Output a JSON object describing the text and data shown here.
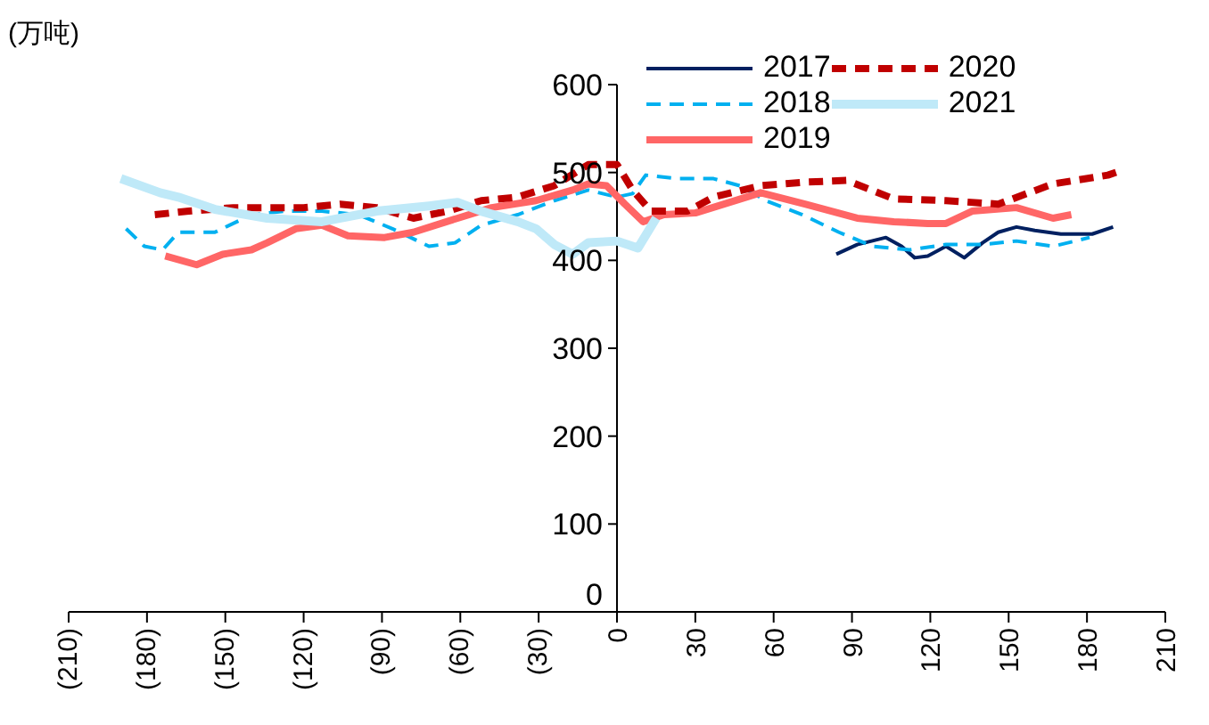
{
  "chart_data": {
    "type": "line",
    "title": "(万吨)",
    "xlim": [
      -210,
      210
    ],
    "ylim": [
      0,
      600
    ],
    "xticks": [
      {
        "value": -210,
        "label": "(210)"
      },
      {
        "value": -180,
        "label": "(180)"
      },
      {
        "value": -150,
        "label": "(150)"
      },
      {
        "value": -120,
        "label": "(120)"
      },
      {
        "value": -90,
        "label": "(90)"
      },
      {
        "value": -60,
        "label": "(60)"
      },
      {
        "value": -30,
        "label": "(30)"
      },
      0,
      30,
      60,
      90,
      120,
      150,
      180,
      210
    ],
    "yticks": [
      0,
      100,
      200,
      300,
      400,
      500,
      600
    ],
    "grid": false,
    "legend": "top right",
    "series": [
      {
        "name": "2017",
        "color": "#002060",
        "line_style": "solid",
        "x": [
          84,
          92,
          103,
          109,
          114,
          119,
          126,
          133,
          140,
          146,
          153,
          160,
          170,
          182,
          190
        ],
        "values": [
          407,
          418,
          426,
          416,
          403,
          405,
          416,
          403,
          420,
          432,
          438,
          434,
          430,
          430,
          438
        ]
      },
      {
        "name": "2018",
        "color": "#00B0F0",
        "line_style": "dashed",
        "x": [
          -188,
          -181,
          -174,
          -168,
          -154,
          -140,
          -127,
          -113,
          -99,
          -86,
          -72,
          -62,
          -52,
          -38,
          -24,
          -11,
          0,
          6,
          11,
          23,
          37,
          47,
          57,
          71,
          85,
          98,
          112,
          126,
          140,
          153,
          167,
          181
        ],
        "values": [
          436,
          416,
          412,
          432,
          432,
          452,
          456,
          456,
          452,
          436,
          416,
          420,
          440,
          452,
          468,
          480,
          472,
          476,
          497,
          493,
          493,
          485,
          468,
          452,
          432,
          416,
          412,
          418,
          418,
          422,
          416,
          426
        ]
      },
      {
        "name": "2019",
        "color": "#FF6666",
        "line_style": "solid",
        "x": [
          -173,
          -161,
          -151,
          -140,
          -134,
          -123,
          -113,
          -103,
          -89,
          -78,
          -61,
          -48,
          -31,
          -17,
          -11,
          -4,
          3,
          10,
          18,
          30,
          41,
          55,
          72,
          92,
          106,
          119,
          126,
          136,
          153,
          167,
          174
        ],
        "values": [
          405,
          395,
          407,
          412,
          420,
          436,
          440,
          428,
          426,
          432,
          448,
          460,
          468,
          480,
          487,
          485,
          464,
          444,
          452,
          454,
          464,
          477,
          464,
          448,
          444,
          442,
          442,
          456,
          460,
          448,
          452
        ]
      },
      {
        "name": "2020",
        "color": "#C00000",
        "line_style": "dashed",
        "x": [
          -177,
          -164,
          -147,
          -134,
          -120,
          -106,
          -92,
          -78,
          -65,
          -52,
          -38,
          -24,
          -11,
          0,
          6,
          13,
          27,
          37,
          55,
          72,
          88,
          106,
          126,
          146,
          167,
          188,
          194
        ],
        "values": [
          452,
          456,
          460,
          460,
          460,
          464,
          460,
          448,
          456,
          468,
          472,
          485,
          509,
          509,
          480,
          456,
          456,
          472,
          485,
          489,
          491,
          470,
          468,
          464,
          487,
          497,
          503
        ]
      },
      {
        "name": "2021",
        "color": "#BFE9F8",
        "line_style": "solid",
        "x": [
          -190,
          -175,
          -168,
          -154,
          -134,
          -113,
          -92,
          -72,
          -61,
          -52,
          -38,
          -31,
          -24,
          -17,
          -11,
          0,
          8,
          15
        ],
        "values": [
          493,
          477,
          472,
          458,
          448,
          444,
          456,
          462,
          466,
          456,
          444,
          436,
          418,
          407,
          420,
          422,
          414,
          448
        ]
      }
    ]
  }
}
